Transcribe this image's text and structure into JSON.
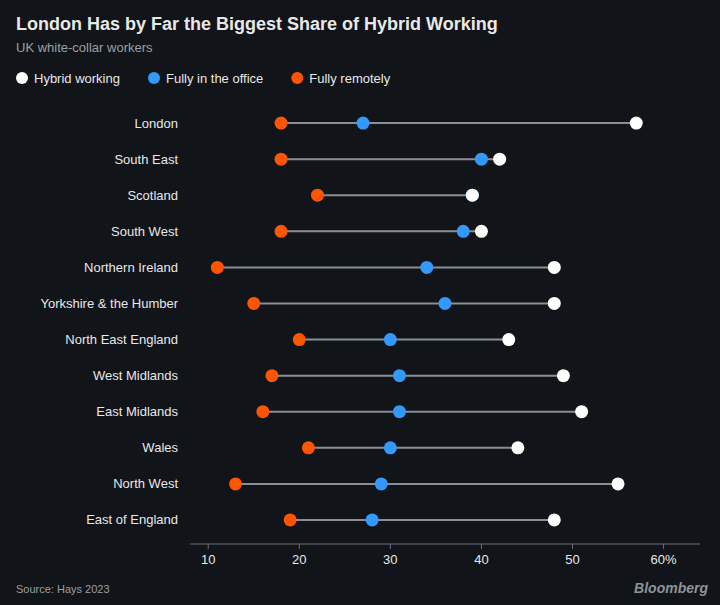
{
  "chart_data": {
    "type": "dumbbell",
    "title": "London Has by Far the Biggest Share of Hybrid Working",
    "subtitle": "UK white-collar workers",
    "annotations": [
      "Source: Hays 2023",
      "Bloomberg"
    ],
    "categories": [
      "London",
      "South East",
      "Scotland",
      "South West",
      "Northern Ireland",
      "Yorkshire & the Humber",
      "North East England",
      "West Midlands",
      "East Midlands",
      "Wales",
      "North West",
      "East of England"
    ],
    "series": [
      {
        "name": "Hybrid working",
        "color": "#ffffff",
        "values": [
          57,
          42,
          39,
          40,
          48,
          48,
          43,
          49,
          51,
          44,
          55,
          48
        ]
      },
      {
        "name": "Fully in the office",
        "color": "#3399ff",
        "values": [
          27,
          40,
          39,
          38,
          34,
          36,
          30,
          31,
          31,
          30,
          29,
          28
        ]
      },
      {
        "name": "Fully remotely",
        "color": "#ff5500",
        "values": [
          18,
          18,
          22,
          18,
          11,
          15,
          20,
          17,
          16,
          21,
          13,
          19
        ]
      }
    ],
    "xlim": [
      8,
      64
    ],
    "xticks": [
      10,
      20,
      30,
      40,
      50,
      {
        "value": 60,
        "label": "60%"
      }
    ],
    "grid": false,
    "legend": "top"
  }
}
